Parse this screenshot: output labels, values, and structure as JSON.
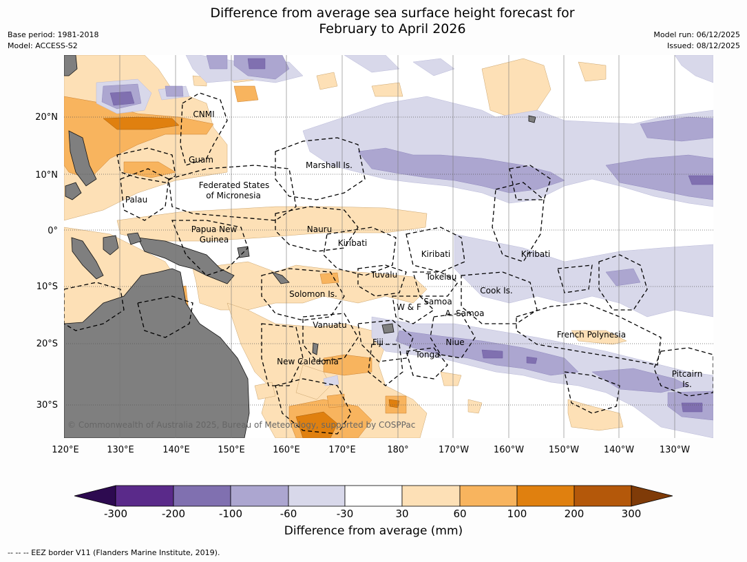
{
  "title_line1": "Difference from average sea surface height forecast for",
  "title_line2": "February to April 2026",
  "base_period": "Base period: 1981-2018",
  "model": "Model: ACCESS-S2",
  "model_run": "Model run: 06/12/2025",
  "issued": "Issued: 08/12/2025",
  "copyright": "© Commonwealth of Australia 2025, Bureau of Meteorology, supported by COSPPac",
  "footer": "--  --  -- EEZ border V11 (Flanders Marine Institute, 2019).",
  "map": {
    "lon_labels": [
      "120°E",
      "130°E",
      "140°E",
      "150°E",
      "160°E",
      "170°E",
      "180°",
      "170°W",
      "160°W",
      "150°W",
      "140°W",
      "130°W"
    ],
    "lat_labels": [
      "20°N",
      "10°N",
      "0°",
      "10°S",
      "20°S",
      "30°S"
    ],
    "places": {
      "cnmi": "CNMI",
      "guam": "Guam",
      "marshall": "Marshall Is.",
      "fsm1": "Federated States",
      "fsm2": "of Micronesia",
      "palau": "Palau",
      "png1": "Papua New",
      "png2": "Guinea",
      "nauru": "Nauru",
      "kiribati_w": "Kiribati",
      "kiribati_c": "Kiribati",
      "kiribati_e": "Kiribati",
      "tuvalu": "Tuvalu",
      "tokelau": "Tokelau",
      "cook": "Cook Is.",
      "solomon": "Solomon Is.",
      "wf": "W & F",
      "samoa": "Samoa",
      "asamoa": "A. Samoa",
      "vanuatu": "Vanuatu",
      "fiji": "Fiji",
      "niue": "Niue",
      "tonga": "Tonga",
      "fp": "French Polynesia",
      "newcal": "New Caledonia",
      "pitcairn1": "Pitcairn",
      "pitcairn2": "Is."
    }
  },
  "colorbar": {
    "title": "Difference from average (mm)",
    "ticks": [
      "-300",
      "-200",
      "-100",
      "-60",
      "-30",
      "30",
      "60",
      "100",
      "200",
      "300"
    ],
    "colors": [
      "#5a2a8a",
      "#8070b0",
      "#aca6d0",
      "#d8d8ea",
      "#ffffff",
      "#fde0b6",
      "#f8b45e",
      "#e0800f",
      "#b4580a"
    ],
    "end_colors": {
      "low": "#2d0a50",
      "high": "#7f3b08"
    }
  }
}
